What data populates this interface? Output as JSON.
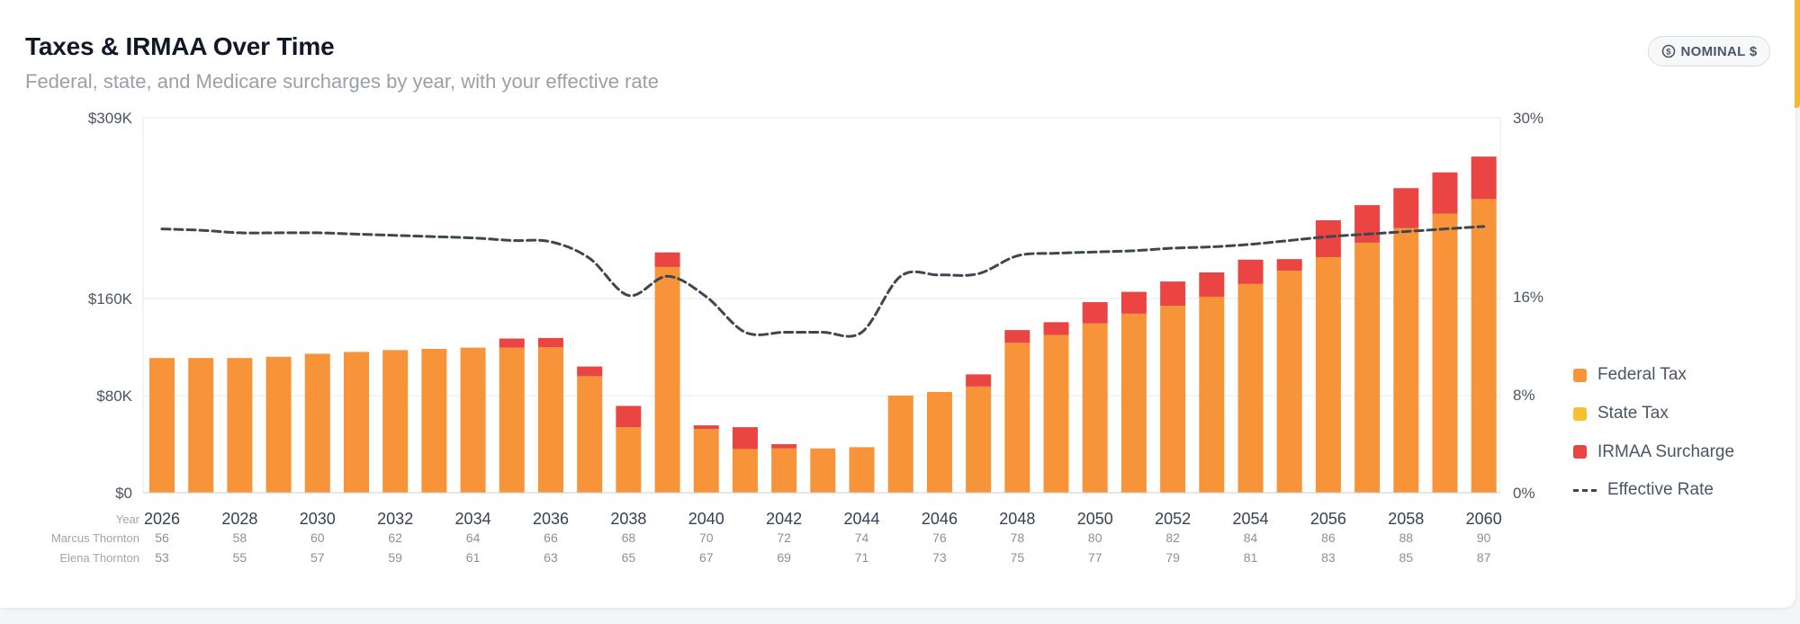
{
  "header": {
    "title": "Taxes & IRMAA Over Time",
    "subtitle": "Federal, state, and Medicare surcharges by year, with your effective rate",
    "badge_label": "NOMINAL $",
    "badge_icon": "dollar-circle-icon"
  },
  "legend": {
    "items": [
      {
        "label": "Federal Tax",
        "color": "#f7943a"
      },
      {
        "label": "State Tax",
        "color": "#f5c12e"
      },
      {
        "label": "IRMAA Surcharge",
        "color": "#ea4443"
      }
    ],
    "line_label": "Effective Rate",
    "line_color": "#3f4650"
  },
  "chart_data": {
    "type": "bar",
    "title": "Taxes & IRMAA Over Time",
    "x": [
      2026,
      2027,
      2028,
      2029,
      2030,
      2031,
      2032,
      2033,
      2034,
      2035,
      2036,
      2037,
      2038,
      2039,
      2040,
      2041,
      2042,
      2043,
      2044,
      2045,
      2046,
      2047,
      2048,
      2049,
      2050,
      2051,
      2052,
      2053,
      2054,
      2055,
      2056,
      2057,
      2058,
      2059,
      2060
    ],
    "x_tick_labels": [
      "2026",
      "2028",
      "2030",
      "2032",
      "2034",
      "2036",
      "2038",
      "2040",
      "2042",
      "2044",
      "2046",
      "2048",
      "2050",
      "2052",
      "2054",
      "2056",
      "2058",
      "2060"
    ],
    "x_axis_label": "Year",
    "age_rows": [
      {
        "name": "Marcus Thornton",
        "ages": [
          "56",
          "58",
          "60",
          "62",
          "64",
          "66",
          "68",
          "70",
          "72",
          "74",
          "76",
          "78",
          "80",
          "82",
          "84",
          "86",
          "88",
          "90"
        ]
      },
      {
        "name": "Elena Thornton",
        "ages": [
          "53",
          "55",
          "57",
          "59",
          "61",
          "63",
          "65",
          "67",
          "69",
          "71",
          "73",
          "75",
          "77",
          "79",
          "81",
          "83",
          "85",
          "87"
        ]
      }
    ],
    "series": [
      {
        "name": "Federal Tax",
        "axis": "left",
        "color": "#f7943a",
        "values": [
          111000,
          111000,
          111000,
          112000,
          114500,
          116000,
          117500,
          118500,
          119500,
          119500,
          120000,
          96000,
          54000,
          186000,
          52500,
          36000,
          36500,
          36500,
          37500,
          80000,
          83000,
          87500,
          123500,
          130000,
          139500,
          147500,
          154000,
          161500,
          172000,
          183000,
          194000,
          206000,
          218000,
          230000,
          242000
        ]
      },
      {
        "name": "State Tax",
        "axis": "left",
        "color": "#f5c12e",
        "values": [
          0,
          0,
          0,
          0,
          0,
          0,
          0,
          0,
          0,
          0,
          0,
          0,
          0,
          0,
          0,
          0,
          0,
          0,
          0,
          0,
          0,
          0,
          0,
          0,
          0,
          0,
          0,
          0,
          0,
          0,
          0,
          0,
          0,
          0,
          0
        ]
      },
      {
        "name": "IRMAA Surcharge",
        "axis": "left",
        "color": "#ea4443",
        "values": [
          0,
          0,
          0,
          0,
          0,
          0,
          0,
          0,
          0,
          7500,
          7500,
          8000,
          17500,
          12000,
          3000,
          18000,
          3500,
          0,
          0,
          0,
          0,
          10000,
          10500,
          10500,
          17500,
          18000,
          20000,
          20000,
          20000,
          9500,
          30500,
          31000,
          33000,
          34000,
          35000
        ]
      },
      {
        "name": "Effective Rate",
        "type": "line",
        "axis": "right",
        "color": "#3f4650",
        "values": [
          21.3,
          21.2,
          21.0,
          21.0,
          21.0,
          20.9,
          20.8,
          20.7,
          20.6,
          20.4,
          20.3,
          19.0,
          16.1,
          17.6,
          16.0,
          13.1,
          13.1,
          13.1,
          13.1,
          17.6,
          17.7,
          17.8,
          19.2,
          19.4,
          19.5,
          19.6,
          19.8,
          19.9,
          20.1,
          20.4,
          20.7,
          20.9,
          21.1,
          21.3,
          21.5
        ]
      }
    ],
    "y_left": {
      "ticks": [
        "$0",
        "$80K",
        "$160K",
        "$309K"
      ],
      "tick_values": [
        0,
        80000,
        160000,
        309000
      ],
      "range": [
        0,
        309000
      ],
      "piecewise": true
    },
    "y_right": {
      "ticks": [
        "0%",
        "8%",
        "16%",
        "30%"
      ],
      "tick_values": [
        0,
        8,
        16,
        30
      ],
      "range": [
        0,
        30
      ],
      "piecewise": true
    },
    "grid": true,
    "legend_position": "right"
  }
}
